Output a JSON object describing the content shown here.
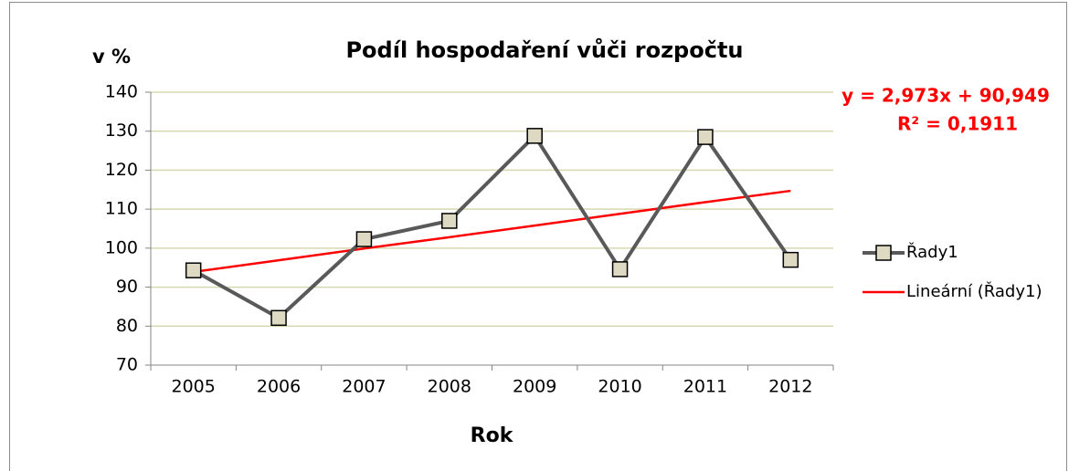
{
  "chart_data": {
    "type": "line",
    "title": "Podíl hospodaření vůči rozpočtu",
    "y_label": "v %",
    "x_label": "Rok",
    "annotations": [
      "y = 2,973x + 90,949",
      "R² = 0,1911"
    ],
    "categories": [
      "2005",
      "2006",
      "2007",
      "2008",
      "2009",
      "2010",
      "2011",
      "2012"
    ],
    "series": [
      {
        "name": "Řady1",
        "color": "#595959",
        "values": [
          94.3,
          82.1,
          102.3,
          107,
          128.8,
          94.6,
          128.5,
          97
        ]
      },
      {
        "name": "Lineární (Řady1)",
        "color": "#ff0000",
        "values": [
          93.9,
          96.9,
          99.9,
          102.8,
          105.8,
          108.8,
          111.8,
          114.7
        ]
      }
    ],
    "ylim": [
      70,
      140
    ],
    "yticks": [
      70,
      80,
      90,
      100,
      110,
      120,
      130,
      140
    ],
    "grid": true,
    "legend": "right"
  }
}
